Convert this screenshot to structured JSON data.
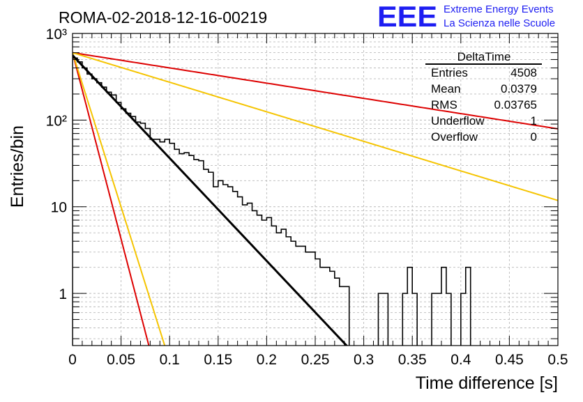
{
  "header": {
    "run_title": "ROMA-02-2018-12-16-00219",
    "logo_text": "EEE",
    "logo_line1": "Extreme Energy Events",
    "logo_line2": "La Scienza nelle Scuole"
  },
  "stats_box": {
    "title": "DeltaTime",
    "rows": [
      {
        "label": "Entries",
        "value": "4508"
      },
      {
        "label": "Mean",
        "value": "0.0379"
      },
      {
        "label": "RMS",
        "value": "0.03765"
      },
      {
        "label": "Underflow",
        "value": "1"
      },
      {
        "label": "Overflow",
        "value": "0"
      }
    ]
  },
  "colors": {
    "histogram": "#000000",
    "fit_line": "#000000",
    "red_lines": "#dd0000",
    "yellow_lines": "#f5c400",
    "logo": "#1d1df2"
  },
  "chart_data": {
    "type": "histogram",
    "xlabel": "Time difference [s]",
    "ylabel": "Entries/bin",
    "xlim": [
      0,
      0.5
    ],
    "ylim": [
      0.25,
      1000
    ],
    "y_log_scale": true,
    "grid": true,
    "x_ticks": [
      {
        "v": 0,
        "label": "0"
      },
      {
        "v": 0.05,
        "label": "0.05"
      },
      {
        "v": 0.1,
        "label": "0.1"
      },
      {
        "v": 0.15,
        "label": "0.15"
      },
      {
        "v": 0.2,
        "label": "0.2"
      },
      {
        "v": 0.25,
        "label": "0.25"
      },
      {
        "v": 0.3,
        "label": "0.3"
      },
      {
        "v": 0.35,
        "label": "0.35"
      },
      {
        "v": 0.4,
        "label": "0.4"
      },
      {
        "v": 0.45,
        "label": "0.45"
      },
      {
        "v": 0.5,
        "label": "0.5"
      }
    ],
    "y_ticks": [
      {
        "v": 1,
        "label": "1"
      },
      {
        "v": 10,
        "label": "10"
      },
      {
        "v": 100,
        "label": "10²"
      },
      {
        "v": 1000,
        "label": "10³"
      }
    ],
    "bin_width": 0.005,
    "bin_contents": [
      520,
      470,
      400,
      340,
      300,
      270,
      240,
      210,
      195,
      160,
      135,
      120,
      110,
      95,
      92,
      80,
      60,
      60,
      56,
      60,
      54,
      46,
      41,
      42,
      39,
      35,
      34,
      27,
      25,
      17,
      20,
      18,
      17,
      15,
      13,
      10.5,
      11,
      9,
      8,
      7,
      7.5,
      6,
      5,
      5.5,
      4.5,
      4,
      3.5,
      3.5,
      3,
      3,
      2.5,
      2,
      2,
      1.8,
      1.5,
      1.2,
      1.2,
      0,
      0,
      0,
      0,
      0,
      0,
      1,
      1,
      0,
      0,
      0,
      1,
      2,
      1,
      0,
      0,
      0,
      1,
      1,
      2,
      1,
      0,
      0,
      1,
      2
    ],
    "series": [
      {
        "name": "fit",
        "kind": "exponential",
        "color": "#000000",
        "x0": 0,
        "y0": 560,
        "tau": 0.0366
      },
      {
        "name": "red-slow",
        "kind": "exponential",
        "color": "#dd0000",
        "x0": 0,
        "y0": 600,
        "tau": 0.247
      },
      {
        "name": "yellow-slow",
        "kind": "exponential",
        "color": "#f5c400",
        "x0": 0,
        "y0": 600,
        "tau": 0.1273
      },
      {
        "name": "red-fast",
        "kind": "exponential",
        "color": "#dd0000",
        "x0": 0,
        "y0": 600,
        "tau": 0.0101
      },
      {
        "name": "yellow-fast",
        "kind": "exponential",
        "color": "#f5c400",
        "x0": 0,
        "y0": 600,
        "tau": 0.0122
      }
    ]
  }
}
